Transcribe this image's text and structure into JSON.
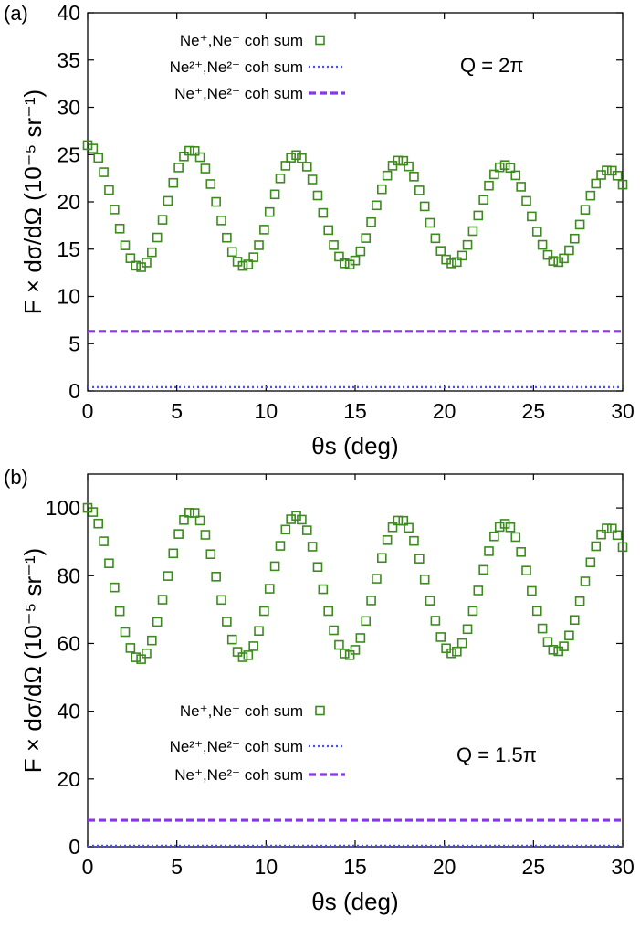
{
  "colors": {
    "green": "#3d8a1f",
    "blue": "#4a4dff",
    "purple": "#8a35e8",
    "axis": "#000000"
  },
  "chart_data": [
    {
      "type": "scatter",
      "panel_label": "(a)",
      "title": "",
      "ylabel": "F × dσ/dΩ (10⁻⁵ sr⁻¹)",
      "xlabel": "θs (deg)",
      "xlim": [
        0,
        30
      ],
      "ylim": [
        0,
        40
      ],
      "xticks": [
        0,
        5,
        10,
        15,
        20,
        25,
        30
      ],
      "yticks": [
        0,
        5,
        10,
        15,
        20,
        25,
        30,
        35,
        40
      ],
      "annotation": "Q = 2π",
      "legend": [
        {
          "label": "Ne⁺,Ne⁺ coh sum",
          "style": "square-markers",
          "color": "#3d8a1f"
        },
        {
          "label": "Ne²⁺,Ne²⁺ coh sum",
          "style": "dotted",
          "color": "#4a4dff"
        },
        {
          "label": "Ne⁺,Ne²⁺ coh sum",
          "style": "dashed",
          "color": "#8a35e8"
        }
      ],
      "series": [
        {
          "name": "Ne⁺,Ne⁺ coh sum",
          "kind": "markers",
          "osc": {
            "x0": 0,
            "x1": 30,
            "step": 0.3,
            "mean_start": 19.5,
            "mean_end": 18.5,
            "amp_start": 6.5,
            "amp_end": 4.8,
            "period": 5.85
          }
        },
        {
          "name": "Ne²⁺,Ne²⁺ coh sum",
          "kind": "dotted",
          "x": [
            0,
            30
          ],
          "y": [
            0.4,
            0.4
          ]
        },
        {
          "name": "Ne⁺,Ne²⁺ coh sum",
          "kind": "dashed",
          "x": [
            0,
            30
          ],
          "y": [
            6.3,
            6.3
          ]
        }
      ]
    },
    {
      "type": "scatter",
      "panel_label": "(b)",
      "title": "",
      "ylabel": "F × dσ/dΩ (10⁻⁵ sr⁻¹)",
      "xlabel": "θs (deg)",
      "xlim": [
        0,
        30
      ],
      "ylim": [
        0,
        110
      ],
      "xticks": [
        0,
        5,
        10,
        15,
        20,
        25,
        30
      ],
      "yticks": [
        0,
        20,
        40,
        60,
        80,
        100
      ],
      "annotation": "Q = 1.5π",
      "legend": [
        {
          "label": "Ne⁺,Ne⁺ coh sum",
          "style": "square-markers",
          "color": "#3d8a1f"
        },
        {
          "label": "Ne²⁺,Ne²⁺ coh sum",
          "style": "dotted",
          "color": "#4a4dff"
        },
        {
          "label": "Ne⁺,Ne²⁺ coh sum",
          "style": "dashed",
          "color": "#8a35e8"
        }
      ],
      "series": [
        {
          "name": "Ne⁺,Ne⁺ coh sum",
          "kind": "markers",
          "osc": {
            "x0": 0,
            "x1": 30,
            "step": 0.3,
            "mean_start": 77.5,
            "mean_end": 76.0,
            "amp_start": 22.5,
            "amp_end": 18.0,
            "period": 5.85
          }
        },
        {
          "name": "Ne²⁺,Ne²⁺ coh sum",
          "kind": "dotted",
          "x": [
            0,
            30
          ],
          "y": [
            0.3,
            0.3
          ]
        },
        {
          "name": "Ne⁺,Ne²⁺ coh sum",
          "kind": "dashed",
          "x": [
            0,
            30
          ],
          "y": [
            7.8,
            7.8
          ]
        }
      ]
    }
  ]
}
